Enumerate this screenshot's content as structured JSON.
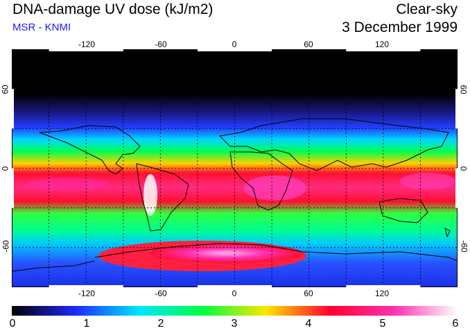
{
  "header": {
    "title": "DNA-damage UV dose (kJ/m2)",
    "subtitle": "MSR - KNMI",
    "scenario": "Clear-sky",
    "date": "3 December 1999"
  },
  "map": {
    "lon_ticks": [
      "-120",
      "-60",
      "0",
      "60",
      "120"
    ],
    "lat_ticks": [
      "60",
      "0",
      "-60"
    ],
    "lon_range": [
      -180,
      180
    ],
    "lat_range": [
      -90,
      90
    ],
    "grid_spacing_deg": 30
  },
  "colorbar": {
    "min": 0,
    "max": 6,
    "labels": [
      "0",
      "1",
      "2",
      "3",
      "4",
      "5",
      "6"
    ],
    "colors": [
      "#000000",
      "#1e28ff",
      "#00e6ff",
      "#00ff40",
      "#ffe600",
      "#ff0030",
      "#ff30b0",
      "#ffffff"
    ]
  }
}
